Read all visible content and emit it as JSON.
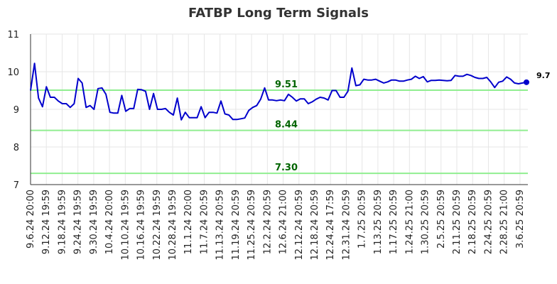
{
  "chart_data": {
    "type": "line",
    "title": "FATBP Long Term Signals",
    "xlabel": "",
    "ylabel": "",
    "ylim": [
      7,
      11
    ],
    "yticks": [
      7,
      8,
      9,
      10,
      11
    ],
    "grid": true,
    "x_tick_labels": [
      "9.6.24 20:00",
      "9.12.24 19:59",
      "9.18.24 19:59",
      "9.24.24 19:59",
      "9.30.24 19:59",
      "10.4.24 20:00",
      "10.10.24 19:59",
      "10.16.24 19:59",
      "10.22.24 19:59",
      "10.28.24 19:59",
      "11.1.24 20:00",
      "11.7.24 20:59",
      "11.13.24 20:59",
      "11.19.24 20:59",
      "11.25.24 20:59",
      "12.2.24 20:59",
      "12.6.24 21:00",
      "12.12.24 20:59",
      "12.18.24 20:59",
      "12.24.24 17:59",
      "12.31.24 20:59",
      "1.7.25 20:59",
      "1.13.25 20:59",
      "1.17.25 20:59",
      "1.24.25 21:00",
      "1.30.25 20:59",
      "2.5.25 20:59",
      "2.11.25 20:59",
      "2.18.25 20:59",
      "2.24.25 20:59",
      "2.28.25 21:00",
      "3.6.25 20:59"
    ],
    "series": [
      {
        "color": "#0000cc",
        "values": [
          9.5,
          10.22,
          9.3,
          9.07,
          9.6,
          9.32,
          9.32,
          9.22,
          9.15,
          9.15,
          9.05,
          9.15,
          9.82,
          9.7,
          9.05,
          9.1,
          9.0,
          9.55,
          9.57,
          9.4,
          8.92,
          8.9,
          8.9,
          9.37,
          8.95,
          9.02,
          9.02,
          9.53,
          9.52,
          9.48,
          9.0,
          9.42,
          9.0,
          9.0,
          9.02,
          8.92,
          8.85,
          9.3,
          8.72,
          8.92,
          8.78,
          8.78,
          8.78,
          9.07,
          8.78,
          8.92,
          8.92,
          8.9,
          9.22,
          8.88,
          8.85,
          8.73,
          8.73,
          8.75,
          8.77,
          8.97,
          9.05,
          9.1,
          9.27,
          9.57,
          9.25,
          9.25,
          9.23,
          9.25,
          9.23,
          9.4,
          9.32,
          9.22,
          9.28,
          9.28,
          9.15,
          9.2,
          9.27,
          9.32,
          9.3,
          9.25,
          9.5,
          9.5,
          9.32,
          9.32,
          9.48,
          10.1,
          9.63,
          9.65,
          9.8,
          9.78,
          9.78,
          9.8,
          9.75,
          9.7,
          9.73,
          9.78,
          9.78,
          9.75,
          9.75,
          9.78,
          9.8,
          9.88,
          9.82,
          9.87,
          9.73,
          9.77,
          9.77,
          9.78,
          9.77,
          9.76,
          9.77,
          9.9,
          9.88,
          9.88,
          9.93,
          9.9,
          9.85,
          9.82,
          9.82,
          9.85,
          9.73,
          9.58,
          9.72,
          9.75,
          9.86,
          9.8,
          9.7,
          9.68,
          9.7,
          9.72
        ]
      }
    ],
    "last_value_label": "9.7",
    "reference_lines": [
      {
        "value": 9.51,
        "label": "9.51",
        "color": "#90ee90"
      },
      {
        "value": 8.44,
        "label": "8.44",
        "color": "#90ee90"
      },
      {
        "value": 7.3,
        "label": "7.30",
        "color": "#90ee90"
      }
    ]
  }
}
